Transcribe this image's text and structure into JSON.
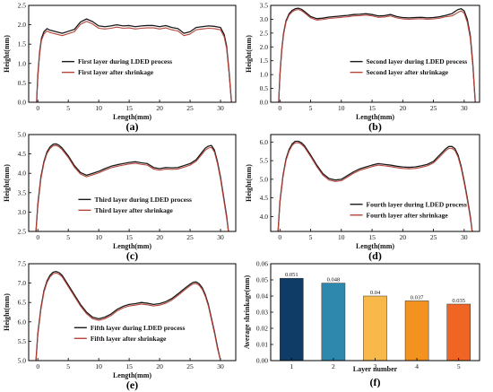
{
  "colors": {
    "during": "#1a1a1a",
    "after": "#b5443a",
    "bars": [
      "#0e3c66",
      "#2e88ad",
      "#f8b94a",
      "#f4921f",
      "#f06424"
    ]
  },
  "chart_data": [
    {
      "type": "line",
      "panel": "(a)",
      "xlabel": "Length(mm)",
      "ylabel": "Height(mm)",
      "xlim": [
        -1.5,
        32.5
      ],
      "ylim": [
        0.0,
        2.5
      ],
      "xticks": [
        0,
        5,
        10,
        15,
        20,
        25,
        30
      ],
      "yticks": [
        0.0,
        0.5,
        1.0,
        1.5,
        2.0,
        2.5
      ],
      "legend_position": "center-left",
      "series": [
        {
          "name": "First layer during LDED process",
          "x": [
            -0.2,
            0,
            0.3,
            0.6,
            1,
            1.5,
            2,
            3,
            4,
            5,
            6,
            7,
            8,
            9,
            10,
            11,
            12,
            13,
            14,
            15,
            16,
            17,
            18,
            19,
            20,
            21,
            22,
            23,
            24,
            25,
            26,
            27,
            28,
            29,
            30,
            30.6,
            31,
            31.4,
            31.8
          ],
          "y": [
            0.0,
            0.7,
            1.3,
            1.65,
            1.82,
            1.9,
            1.86,
            1.82,
            1.78,
            1.83,
            1.88,
            2.07,
            2.15,
            2.08,
            1.97,
            1.95,
            1.97,
            2.0,
            1.97,
            1.98,
            1.95,
            1.97,
            1.98,
            1.98,
            1.95,
            1.98,
            1.93,
            1.9,
            1.78,
            1.82,
            1.93,
            1.95,
            1.97,
            1.96,
            1.93,
            1.75,
            1.45,
            0.8,
            0.0
          ]
        },
        {
          "name": "First layer after shrinkage",
          "x": [
            -0.2,
            0,
            0.3,
            0.6,
            1,
            1.5,
            2,
            3,
            4,
            5,
            6,
            7,
            8,
            9,
            10,
            11,
            12,
            13,
            14,
            15,
            16,
            17,
            18,
            19,
            20,
            21,
            22,
            23,
            24,
            25,
            26,
            27,
            28,
            29,
            30,
            30.6,
            31,
            31.4,
            31.8
          ],
          "y": [
            0.0,
            0.65,
            1.25,
            1.6,
            1.76,
            1.84,
            1.8,
            1.76,
            1.72,
            1.77,
            1.82,
            2.01,
            2.09,
            2.02,
            1.91,
            1.89,
            1.91,
            1.94,
            1.91,
            1.92,
            1.89,
            1.91,
            1.92,
            1.92,
            1.89,
            1.92,
            1.87,
            1.84,
            1.72,
            1.76,
            1.87,
            1.89,
            1.91,
            1.9,
            1.87,
            1.69,
            1.39,
            0.75,
            0.0
          ]
        }
      ]
    },
    {
      "type": "line",
      "panel": "(b)",
      "xlabel": "Length(mm)",
      "ylabel": "Height(mm)",
      "xlim": [
        -1.5,
        32.5
      ],
      "ylim": [
        0.0,
        3.5
      ],
      "xticks": [
        0,
        5,
        10,
        15,
        20,
        25,
        30
      ],
      "yticks": [
        0.0,
        0.5,
        1.0,
        1.5,
        2.0,
        2.5,
        3.0,
        3.5
      ],
      "legend_position": "center-right",
      "series": [
        {
          "name": "Second layer during LDED process",
          "x": [
            -0.2,
            0,
            0.3,
            0.6,
            1,
            1.5,
            2,
            2.5,
            3,
            3.5,
            4,
            5,
            6,
            7,
            8,
            9,
            10,
            11,
            12,
            13,
            14,
            15,
            16,
            17,
            18,
            19,
            20,
            21,
            22,
            23,
            24,
            25,
            26,
            27,
            28,
            28.5,
            29,
            29.5,
            30,
            30.5,
            31,
            31.4,
            31.8
          ],
          "y": [
            0.0,
            1.0,
            1.9,
            2.5,
            2.95,
            3.2,
            3.32,
            3.38,
            3.4,
            3.36,
            3.28,
            3.1,
            3.02,
            3.04,
            3.08,
            3.1,
            3.12,
            3.14,
            3.17,
            3.18,
            3.2,
            3.17,
            3.12,
            3.13,
            3.17,
            3.1,
            3.06,
            3.05,
            3.06,
            3.07,
            3.05,
            3.06,
            3.09,
            3.14,
            3.2,
            3.28,
            3.35,
            3.38,
            3.3,
            3.0,
            2.4,
            1.4,
            0.0
          ]
        },
        {
          "name": "Second layer after shrinkage",
          "x": [
            -0.2,
            0,
            0.3,
            0.6,
            1,
            1.5,
            2,
            2.5,
            3,
            3.5,
            4,
            5,
            6,
            7,
            8,
            9,
            10,
            11,
            12,
            13,
            14,
            15,
            16,
            17,
            18,
            19,
            20,
            21,
            22,
            23,
            24,
            25,
            26,
            27,
            28,
            28.5,
            29,
            29.5,
            30,
            30.5,
            31,
            31.4,
            31.8
          ],
          "y": [
            0.0,
            0.95,
            1.85,
            2.45,
            2.9,
            3.15,
            3.27,
            3.33,
            3.35,
            3.31,
            3.23,
            3.05,
            2.97,
            2.99,
            3.03,
            3.05,
            3.07,
            3.09,
            3.12,
            3.13,
            3.15,
            3.12,
            3.07,
            3.08,
            3.12,
            3.05,
            3.01,
            3.0,
            3.01,
            3.02,
            3.0,
            3.01,
            3.04,
            3.09,
            3.12,
            3.18,
            3.25,
            3.3,
            3.22,
            2.9,
            2.3,
            1.3,
            0.0
          ]
        }
      ]
    },
    {
      "type": "line",
      "panel": "(c)",
      "xlabel": "Length(mm)",
      "ylabel": "Height(mm)",
      "xlim": [
        -1.5,
        32.5
      ],
      "ylim": [
        2.5,
        5.0
      ],
      "xticks": [
        0,
        5,
        10,
        15,
        20,
        25,
        30
      ],
      "yticks": [
        2.5,
        3.0,
        3.5,
        4.0,
        4.5,
        5.0
      ],
      "legend_position": "bottom-center",
      "series": [
        {
          "name": "Third layer during LDED process",
          "x": [
            -0.3,
            0,
            0.5,
            1,
            1.5,
            2,
            2.5,
            3,
            3.5,
            4,
            5,
            6,
            7,
            8,
            9,
            10,
            11,
            12,
            13,
            14,
            15,
            16,
            17,
            18,
            19,
            20,
            21,
            22,
            23,
            24,
            25,
            26,
            27,
            27.5,
            28,
            28.5,
            29,
            29.5,
            30,
            30.5,
            31,
            31.3
          ],
          "y": [
            2.5,
            3.2,
            3.9,
            4.3,
            4.55,
            4.68,
            4.75,
            4.76,
            4.72,
            4.65,
            4.45,
            4.2,
            4.02,
            3.95,
            4.0,
            4.05,
            4.12,
            4.18,
            4.22,
            4.25,
            4.28,
            4.3,
            4.27,
            4.25,
            4.15,
            4.12,
            4.15,
            4.14,
            4.15,
            4.2,
            4.25,
            4.35,
            4.55,
            4.65,
            4.7,
            4.72,
            4.6,
            4.3,
            3.9,
            3.4,
            2.9,
            2.5
          ]
        },
        {
          "name": "Third layer after shrinkage",
          "x": [
            -0.3,
            0,
            0.5,
            1,
            1.5,
            2,
            2.5,
            3,
            3.5,
            4,
            5,
            6,
            7,
            8,
            9,
            10,
            11,
            12,
            13,
            14,
            15,
            16,
            17,
            18,
            19,
            20,
            21,
            22,
            23,
            24,
            25,
            26,
            27,
            27.5,
            28,
            28.5,
            29,
            29.5,
            30,
            30.5,
            31,
            31.3
          ],
          "y": [
            2.5,
            3.15,
            3.85,
            4.26,
            4.51,
            4.64,
            4.71,
            4.72,
            4.68,
            4.61,
            4.41,
            4.16,
            3.98,
            3.91,
            3.96,
            4.01,
            4.08,
            4.14,
            4.18,
            4.21,
            4.24,
            4.26,
            4.23,
            4.21,
            4.11,
            4.08,
            4.11,
            4.1,
            4.11,
            4.16,
            4.21,
            4.31,
            4.5,
            4.6,
            4.65,
            4.67,
            4.55,
            4.25,
            3.85,
            3.35,
            2.85,
            2.5
          ]
        }
      ]
    },
    {
      "type": "line",
      "panel": "(d)",
      "xlabel": "Length(mm)",
      "ylabel": "Height(mm)",
      "xlim": [
        -1.5,
        32.5
      ],
      "ylim": [
        3.6,
        6.2
      ],
      "xticks": [
        0,
        5,
        10,
        15,
        20,
        25,
        30
      ],
      "yticks": [
        4.0,
        4.5,
        5.0,
        5.5,
        6.0
      ],
      "legend_position": "bottom-right",
      "series": [
        {
          "name": "Fourth layer during LDED process",
          "x": [
            -0.3,
            0,
            0.5,
            1,
            1.5,
            2,
            2.5,
            3,
            3.5,
            4,
            5,
            6,
            7,
            8,
            9,
            10,
            11,
            12,
            13,
            14,
            15,
            16,
            17,
            18,
            19,
            20,
            21,
            22,
            23,
            24,
            25,
            26,
            27,
            27.5,
            28,
            28.5,
            29,
            29.5,
            30,
            30.5,
            31,
            31.3
          ],
          "y": [
            3.6,
            4.4,
            5.1,
            5.55,
            5.8,
            5.95,
            6.02,
            6.02,
            5.98,
            5.9,
            5.65,
            5.38,
            5.15,
            5.02,
            4.98,
            5.0,
            5.1,
            5.2,
            5.28,
            5.33,
            5.38,
            5.42,
            5.4,
            5.38,
            5.35,
            5.33,
            5.32,
            5.33,
            5.36,
            5.4,
            5.48,
            5.65,
            5.82,
            5.88,
            5.88,
            5.82,
            5.65,
            5.35,
            4.95,
            4.5,
            4.0,
            3.6
          ]
        },
        {
          "name": "Fourth layer after shrinkage",
          "x": [
            -0.3,
            0,
            0.5,
            1,
            1.5,
            2,
            2.5,
            3,
            3.5,
            4,
            5,
            6,
            7,
            8,
            9,
            10,
            11,
            12,
            13,
            14,
            15,
            16,
            17,
            18,
            19,
            20,
            21,
            22,
            23,
            24,
            25,
            26,
            27,
            27.5,
            28,
            28.5,
            29,
            29.5,
            30,
            30.5,
            31,
            31.3
          ],
          "y": [
            3.6,
            4.36,
            5.06,
            5.51,
            5.76,
            5.91,
            5.98,
            5.98,
            5.94,
            5.86,
            5.61,
            5.34,
            5.11,
            4.98,
            4.94,
            4.96,
            5.06,
            5.16,
            5.24,
            5.29,
            5.34,
            5.38,
            5.36,
            5.34,
            5.31,
            5.29,
            5.28,
            5.29,
            5.32,
            5.36,
            5.44,
            5.6,
            5.77,
            5.83,
            5.83,
            5.77,
            5.6,
            5.3,
            4.9,
            4.45,
            3.95,
            3.6
          ]
        }
      ]
    },
    {
      "type": "line",
      "panel": "(e)",
      "xlabel": "Length(mm)",
      "ylabel": "Height(mm)",
      "xlim": [
        -1.5,
        32.5
      ],
      "ylim": [
        5.0,
        7.5
      ],
      "xticks": [
        0,
        5,
        10,
        15,
        20,
        25,
        30
      ],
      "yticks": [
        5.0,
        5.5,
        6.0,
        6.5,
        7.0,
        7.5
      ],
      "legend_position": "bottom-center",
      "series": [
        {
          "name": "Fifth layer during LDED process",
          "x": [
            -0.3,
            0,
            0.5,
            1,
            1.5,
            2,
            2.5,
            3,
            3.5,
            4,
            5,
            6,
            7,
            8,
            9,
            10,
            11,
            12,
            13,
            14,
            15,
            16,
            17,
            18,
            19,
            20,
            21,
            22,
            23,
            24,
            25,
            25.5,
            26,
            26.5,
            27,
            27.5,
            28,
            28.5,
            29,
            29.5,
            30
          ],
          "y": [
            5.0,
            5.7,
            6.35,
            6.8,
            7.05,
            7.2,
            7.28,
            7.3,
            7.27,
            7.2,
            6.95,
            6.7,
            6.45,
            6.25,
            6.12,
            6.08,
            6.12,
            6.2,
            6.32,
            6.4,
            6.45,
            6.47,
            6.5,
            6.48,
            6.45,
            6.47,
            6.52,
            6.6,
            6.72,
            6.85,
            6.97,
            7.02,
            7.03,
            6.98,
            6.88,
            6.7,
            6.45,
            6.1,
            5.75,
            5.35,
            5.0
          ]
        },
        {
          "name": "Fifth layer after shrinkage",
          "x": [
            -0.3,
            0,
            0.5,
            1,
            1.5,
            2,
            2.5,
            3,
            3.5,
            4,
            5,
            6,
            7,
            8,
            9,
            10,
            11,
            12,
            13,
            14,
            15,
            16,
            17,
            18,
            19,
            20,
            21,
            22,
            23,
            24,
            25,
            25.5,
            26,
            26.5,
            27,
            27.5,
            28,
            28.5,
            29,
            29.5,
            30
          ],
          "y": [
            5.0,
            5.66,
            6.31,
            6.76,
            7.01,
            7.16,
            7.24,
            7.26,
            7.23,
            7.16,
            6.91,
            6.66,
            6.41,
            6.21,
            6.08,
            6.04,
            6.08,
            6.16,
            6.28,
            6.36,
            6.41,
            6.43,
            6.46,
            6.44,
            6.41,
            6.43,
            6.48,
            6.56,
            6.68,
            6.81,
            6.93,
            6.98,
            6.99,
            6.94,
            6.84,
            6.66,
            6.41,
            6.06,
            5.71,
            5.31,
            5.0
          ]
        }
      ]
    },
    {
      "type": "bar",
      "panel": "(f)",
      "xlabel": "Layer number",
      "ylabel": "Average shrinkage(mm)",
      "categories": [
        "1",
        "2",
        "3",
        "4",
        "5"
      ],
      "values": [
        0.051,
        0.048,
        0.04,
        0.037,
        0.035
      ],
      "data_labels": [
        "0.051",
        "0.048",
        "0.04",
        "0.037",
        "0.035"
      ],
      "ylim": [
        0.0,
        0.06
      ],
      "yticks": [
        0.0,
        0.01,
        0.02,
        0.03,
        0.04,
        0.05,
        0.06
      ],
      "ytick_labels": [
        "0.00",
        "0.01",
        "0.02",
        "0.03",
        "0.04",
        "0.05",
        "0.06"
      ]
    }
  ]
}
